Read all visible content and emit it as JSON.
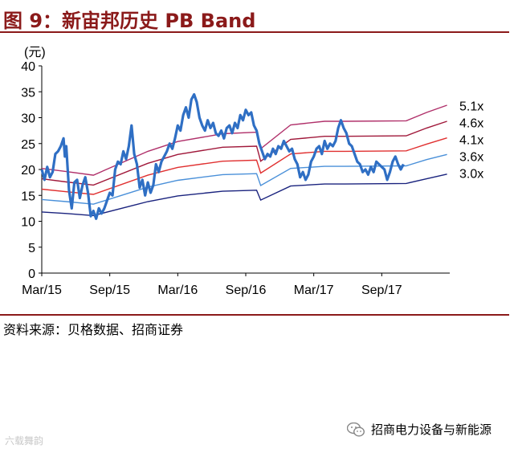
{
  "header": {
    "title": "图 9：新宙邦历史 PB Band"
  },
  "footer": {
    "source": "资料来源：贝格数据、招商证券",
    "wechat_account": "招商电力设备与新能源",
    "watermark": "六载舞韵"
  },
  "chart_data": {
    "type": "line",
    "title": "",
    "xlabel": "",
    "ylabel": "(元)",
    "ylim": [
      0,
      40
    ],
    "yticks": [
      0,
      5,
      10,
      15,
      20,
      25,
      30,
      35,
      40
    ],
    "xlim": [
      2015.17,
      2018.17
    ],
    "xticks": [
      {
        "label": "Mar/15",
        "x": 2015.17
      },
      {
        "label": "Sep/15",
        "x": 2015.67
      },
      {
        "label": "Mar/16",
        "x": 2016.17
      },
      {
        "label": "Sep/16",
        "x": 2016.67
      },
      {
        "label": "Mar/17",
        "x": 2017.17
      },
      {
        "label": "Sep/17",
        "x": 2017.67
      }
    ],
    "grid": false,
    "legend": "right",
    "bands": [
      {
        "name": "5.1x",
        "color": "#b0306a",
        "values": [
          [
            2015.17,
            20.2
          ],
          [
            2015.35,
            19.6
          ],
          [
            2015.55,
            18.9
          ],
          [
            2015.95,
            23.5
          ],
          [
            2016.17,
            25.4
          ],
          [
            2016.5,
            26.9
          ],
          [
            2016.75,
            27.2
          ],
          [
            2016.78,
            24.0
          ],
          [
            2017.0,
            28.6
          ],
          [
            2017.25,
            29.3
          ],
          [
            2017.4,
            29.3
          ],
          [
            2017.85,
            29.4
          ],
          [
            2018.0,
            31.0
          ],
          [
            2018.15,
            32.4
          ]
        ]
      },
      {
        "name": "4.6x",
        "color": "#a0183a",
        "values": [
          [
            2015.17,
            18.2
          ],
          [
            2015.35,
            17.6
          ],
          [
            2015.55,
            17.0
          ],
          [
            2015.95,
            21.2
          ],
          [
            2016.17,
            22.9
          ],
          [
            2016.5,
            24.3
          ],
          [
            2016.75,
            24.5
          ],
          [
            2016.78,
            21.6
          ],
          [
            2017.0,
            25.8
          ],
          [
            2017.25,
            26.4
          ],
          [
            2017.4,
            26.4
          ],
          [
            2017.85,
            26.5
          ],
          [
            2018.0,
            28.0
          ],
          [
            2018.15,
            29.3
          ]
        ]
      },
      {
        "name": "4.1x",
        "color": "#e03030",
        "values": [
          [
            2015.17,
            16.2
          ],
          [
            2015.35,
            15.7
          ],
          [
            2015.55,
            15.2
          ],
          [
            2015.95,
            18.9
          ],
          [
            2016.17,
            20.4
          ],
          [
            2016.5,
            21.6
          ],
          [
            2016.75,
            21.8
          ],
          [
            2016.78,
            19.3
          ],
          [
            2017.0,
            23.0
          ],
          [
            2017.25,
            23.5
          ],
          [
            2017.4,
            23.5
          ],
          [
            2017.85,
            23.6
          ],
          [
            2018.0,
            24.9
          ],
          [
            2018.15,
            26.1
          ]
        ]
      },
      {
        "name": "3.6x",
        "color": "#4a90d9",
        "values": [
          [
            2015.17,
            14.2
          ],
          [
            2015.35,
            13.8
          ],
          [
            2015.55,
            13.3
          ],
          [
            2015.95,
            16.6
          ],
          [
            2016.17,
            17.9
          ],
          [
            2016.5,
            19.0
          ],
          [
            2016.75,
            19.2
          ],
          [
            2016.78,
            16.9
          ],
          [
            2017.0,
            20.2
          ],
          [
            2017.25,
            20.6
          ],
          [
            2017.4,
            20.6
          ],
          [
            2017.85,
            20.7
          ],
          [
            2018.0,
            21.9
          ],
          [
            2018.15,
            22.9
          ]
        ]
      },
      {
        "name": "3.0x",
        "color": "#1a237e",
        "values": [
          [
            2015.17,
            11.8
          ],
          [
            2015.35,
            11.5
          ],
          [
            2015.55,
            11.1
          ],
          [
            2015.95,
            13.8
          ],
          [
            2016.17,
            14.9
          ],
          [
            2016.5,
            15.8
          ],
          [
            2016.75,
            16.0
          ],
          [
            2016.78,
            14.1
          ],
          [
            2017.0,
            16.8
          ],
          [
            2017.25,
            17.2
          ],
          [
            2017.4,
            17.2
          ],
          [
            2017.85,
            17.3
          ],
          [
            2018.0,
            18.2
          ],
          [
            2018.15,
            19.1
          ]
        ]
      }
    ],
    "price": {
      "color": "#2f6fc4",
      "values": [
        [
          2015.17,
          20.0
        ],
        [
          2015.19,
          18.0
        ],
        [
          2015.21,
          20.5
        ],
        [
          2015.23,
          18.5
        ],
        [
          2015.25,
          19.5
        ],
        [
          2015.27,
          23.0
        ],
        [
          2015.29,
          23.5
        ],
        [
          2015.31,
          24.5
        ],
        [
          2015.33,
          26.0
        ],
        [
          2015.34,
          22.5
        ],
        [
          2015.35,
          24.5
        ],
        [
          2015.37,
          16.0
        ],
        [
          2015.39,
          12.5
        ],
        [
          2015.41,
          17.5
        ],
        [
          2015.43,
          18.0
        ],
        [
          2015.45,
          14.5
        ],
        [
          2015.47,
          17.0
        ],
        [
          2015.49,
          18.5
        ],
        [
          2015.51,
          15.5
        ],
        [
          2015.53,
          11.0
        ],
        [
          2015.55,
          12.0
        ],
        [
          2015.57,
          10.5
        ],
        [
          2015.59,
          12.5
        ],
        [
          2015.61,
          11.5
        ],
        [
          2015.63,
          12.5
        ],
        [
          2015.65,
          14.0
        ],
        [
          2015.67,
          15.5
        ],
        [
          2015.69,
          15.0
        ],
        [
          2015.71,
          20.0
        ],
        [
          2015.73,
          21.5
        ],
        [
          2015.75,
          21.0
        ],
        [
          2015.77,
          23.5
        ],
        [
          2015.79,
          22.0
        ],
        [
          2015.81,
          24.5
        ],
        [
          2015.83,
          28.5
        ],
        [
          2015.85,
          23.0
        ],
        [
          2015.87,
          21.0
        ],
        [
          2015.89,
          16.5
        ],
        [
          2015.91,
          18.0
        ],
        [
          2015.93,
          15.0
        ],
        [
          2015.95,
          17.5
        ],
        [
          2015.97,
          15.5
        ],
        [
          2015.99,
          17.0
        ],
        [
          2016.01,
          21.0
        ],
        [
          2016.03,
          19.5
        ],
        [
          2016.05,
          21.5
        ],
        [
          2016.07,
          22.5
        ],
        [
          2016.09,
          23.5
        ],
        [
          2016.11,
          25.0
        ],
        [
          2016.13,
          24.0
        ],
        [
          2016.15,
          26.0
        ],
        [
          2016.17,
          28.5
        ],
        [
          2016.19,
          27.5
        ],
        [
          2016.21,
          30.5
        ],
        [
          2016.23,
          32.0
        ],
        [
          2016.25,
          30.0
        ],
        [
          2016.27,
          33.5
        ],
        [
          2016.29,
          34.5
        ],
        [
          2016.31,
          33.0
        ],
        [
          2016.33,
          30.0
        ],
        [
          2016.35,
          28.5
        ],
        [
          2016.37,
          27.5
        ],
        [
          2016.39,
          29.5
        ],
        [
          2016.41,
          28.0
        ],
        [
          2016.43,
          29.0
        ],
        [
          2016.45,
          27.0
        ],
        [
          2016.47,
          26.5
        ],
        [
          2016.49,
          27.5
        ],
        [
          2016.51,
          26.0
        ],
        [
          2016.53,
          28.0
        ],
        [
          2016.55,
          28.5
        ],
        [
          2016.57,
          27.0
        ],
        [
          2016.59,
          29.0
        ],
        [
          2016.61,
          28.0
        ],
        [
          2016.63,
          30.5
        ],
        [
          2016.65,
          29.5
        ],
        [
          2016.67,
          31.5
        ],
        [
          2016.69,
          30.5
        ],
        [
          2016.71,
          31.0
        ],
        [
          2016.73,
          28.5
        ],
        [
          2016.75,
          27.5
        ],
        [
          2016.77,
          25.0
        ],
        [
          2016.79,
          23.5
        ],
        [
          2016.81,
          22.0
        ],
        [
          2016.83,
          23.0
        ],
        [
          2016.85,
          22.5
        ],
        [
          2016.87,
          24.0
        ],
        [
          2016.89,
          23.0
        ],
        [
          2016.91,
          24.5
        ],
        [
          2016.93,
          24.0
        ],
        [
          2016.95,
          25.5
        ],
        [
          2016.97,
          24.5
        ],
        [
          2016.99,
          23.5
        ],
        [
          2017.01,
          24.0
        ],
        [
          2017.03,
          22.0
        ],
        [
          2017.05,
          21.0
        ],
        [
          2017.07,
          18.5
        ],
        [
          2017.09,
          19.5
        ],
        [
          2017.11,
          18.0
        ],
        [
          2017.13,
          19.0
        ],
        [
          2017.15,
          21.5
        ],
        [
          2017.17,
          22.5
        ],
        [
          2017.19,
          24.0
        ],
        [
          2017.21,
          24.5
        ],
        [
          2017.23,
          23.0
        ],
        [
          2017.25,
          25.5
        ],
        [
          2017.27,
          24.0
        ],
        [
          2017.29,
          25.0
        ],
        [
          2017.31,
          24.5
        ],
        [
          2017.33,
          25.5
        ],
        [
          2017.35,
          28.0
        ],
        [
          2017.37,
          29.5
        ],
        [
          2017.39,
          28.0
        ],
        [
          2017.41,
          27.0
        ],
        [
          2017.43,
          25.0
        ],
        [
          2017.45,
          24.5
        ],
        [
          2017.47,
          23.0
        ],
        [
          2017.49,
          21.5
        ],
        [
          2017.51,
          21.0
        ],
        [
          2017.53,
          19.5
        ],
        [
          2017.55,
          20.0
        ],
        [
          2017.57,
          19.0
        ],
        [
          2017.59,
          20.5
        ],
        [
          2017.61,
          19.5
        ],
        [
          2017.63,
          21.5
        ],
        [
          2017.65,
          21.0
        ],
        [
          2017.67,
          20.5
        ],
        [
          2017.69,
          20.0
        ],
        [
          2017.71,
          18.0
        ],
        [
          2017.73,
          19.5
        ],
        [
          2017.75,
          21.5
        ],
        [
          2017.77,
          22.5
        ],
        [
          2017.79,
          21.0
        ],
        [
          2017.81,
          20.0
        ],
        [
          2017.83,
          21.0
        ]
      ]
    }
  }
}
